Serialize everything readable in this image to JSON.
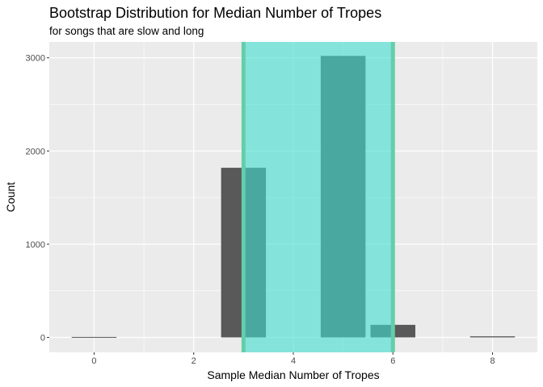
{
  "chart_data": {
    "type": "bar",
    "title": "Bootstrap Distribution for Median Number of Tropes",
    "subtitle": "for songs that are slow and long",
    "xlabel": "Sample Median Number of Tropes",
    "ylabel": "Count",
    "x": [
      0,
      3,
      5,
      6,
      8
    ],
    "values": [
      5,
      1820,
      3020,
      135,
      12
    ],
    "xlim": [
      -0.9,
      8.9
    ],
    "ylim": [
      -160,
      3170
    ],
    "x_ticks": [
      0,
      2,
      4,
      6,
      8
    ],
    "y_ticks": [
      0,
      1000,
      2000,
      3000
    ],
    "x_tick_labels": [
      "0",
      "2",
      "4",
      "6",
      "8"
    ],
    "y_tick_labels": [
      "0",
      "1000",
      "2000",
      "3000"
    ],
    "bar_width": 0.9,
    "bar_color": "#595959",
    "confidence_interval": {
      "lower": 3,
      "upper": 6,
      "shade_color": "#40E0D0",
      "line_color": "#66CDAA"
    },
    "panel_background": "#EBEBEB",
    "grid": true
  }
}
